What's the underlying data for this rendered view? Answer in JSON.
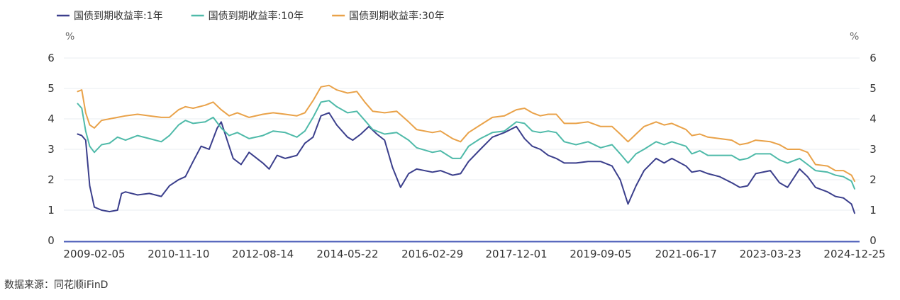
{
  "chart_data": {
    "type": "line",
    "x_ticks": [
      "2009-02-05",
      "2010-11-10",
      "2012-08-14",
      "2014-05-22",
      "2016-02-29",
      "2017-12-01",
      "2019-09-05",
      "2021-06-17",
      "2023-03-23",
      "2024-12-25"
    ],
    "ylabel_left": "%",
    "ylabel_right": "%",
    "ylim": [
      0,
      6
    ],
    "y_ticks": [
      0,
      1,
      2,
      3,
      4,
      5,
      6
    ],
    "grid": true,
    "legend_position": "top-left",
    "series": [
      {
        "name": "国债到期收益率:1年",
        "color": "#3b3f8c",
        "points": [
          [
            "2008-10-01",
            3.5
          ],
          [
            "2008-11-01",
            3.45
          ],
          [
            "2008-12-01",
            3.3
          ],
          [
            "2009-01-01",
            1.8
          ],
          [
            "2009-02-05",
            1.1
          ],
          [
            "2009-04-01",
            1.0
          ],
          [
            "2009-06-01",
            0.95
          ],
          [
            "2009-08-01",
            1.0
          ],
          [
            "2009-09-01",
            1.55
          ],
          [
            "2009-10-01",
            1.6
          ],
          [
            "2010-01-01",
            1.5
          ],
          [
            "2010-04-01",
            1.55
          ],
          [
            "2010-07-01",
            1.45
          ],
          [
            "2010-09-01",
            1.8
          ],
          [
            "2010-11-10",
            2.0
          ],
          [
            "2011-01-01",
            2.1
          ],
          [
            "2011-03-01",
            2.6
          ],
          [
            "2011-05-01",
            3.1
          ],
          [
            "2011-07-01",
            3.0
          ],
          [
            "2011-09-01",
            3.7
          ],
          [
            "2011-10-01",
            3.9
          ],
          [
            "2011-12-01",
            3.1
          ],
          [
            "2012-01-01",
            2.7
          ],
          [
            "2012-03-01",
            2.5
          ],
          [
            "2012-05-01",
            2.9
          ],
          [
            "2012-08-14",
            2.55
          ],
          [
            "2012-10-01",
            2.35
          ],
          [
            "2012-12-01",
            2.8
          ],
          [
            "2013-02-01",
            2.7
          ],
          [
            "2013-05-01",
            2.8
          ],
          [
            "2013-07-01",
            3.2
          ],
          [
            "2013-09-01",
            3.4
          ],
          [
            "2013-11-01",
            4.1
          ],
          [
            "2014-01-01",
            4.2
          ],
          [
            "2014-03-01",
            3.8
          ],
          [
            "2014-05-22",
            3.4
          ],
          [
            "2014-07-01",
            3.3
          ],
          [
            "2014-09-01",
            3.5
          ],
          [
            "2014-11-01",
            3.75
          ],
          [
            "2015-01-01",
            3.5
          ],
          [
            "2015-03-01",
            3.3
          ],
          [
            "2015-05-01",
            2.4
          ],
          [
            "2015-07-01",
            1.75
          ],
          [
            "2015-09-01",
            2.2
          ],
          [
            "2015-11-01",
            2.35
          ],
          [
            "2016-02-29",
            2.25
          ],
          [
            "2016-05-01",
            2.3
          ],
          [
            "2016-08-01",
            2.15
          ],
          [
            "2016-10-01",
            2.2
          ],
          [
            "2016-12-01",
            2.6
          ],
          [
            "2017-03-01",
            3.0
          ],
          [
            "2017-06-01",
            3.4
          ],
          [
            "2017-09-01",
            3.55
          ],
          [
            "2017-12-01",
            3.75
          ],
          [
            "2018-02-01",
            3.35
          ],
          [
            "2018-04-01",
            3.1
          ],
          [
            "2018-06-01",
            3.0
          ],
          [
            "2018-08-01",
            2.8
          ],
          [
            "2018-10-01",
            2.7
          ],
          [
            "2018-12-01",
            2.55
          ],
          [
            "2019-03-01",
            2.55
          ],
          [
            "2019-06-01",
            2.6
          ],
          [
            "2019-09-05",
            2.6
          ],
          [
            "2019-12-01",
            2.45
          ],
          [
            "2020-02-01",
            2.0
          ],
          [
            "2020-04-01",
            1.2
          ],
          [
            "2020-06-01",
            1.8
          ],
          [
            "2020-08-01",
            2.3
          ],
          [
            "2020-11-01",
            2.7
          ],
          [
            "2021-01-01",
            2.55
          ],
          [
            "2021-03-01",
            2.7
          ],
          [
            "2021-06-17",
            2.45
          ],
          [
            "2021-08-01",
            2.25
          ],
          [
            "2021-10-01",
            2.3
          ],
          [
            "2021-12-01",
            2.2
          ],
          [
            "2022-03-01",
            2.1
          ],
          [
            "2022-06-01",
            1.9
          ],
          [
            "2022-08-01",
            1.75
          ],
          [
            "2022-10-01",
            1.8
          ],
          [
            "2022-12-01",
            2.2
          ],
          [
            "2023-03-23",
            2.3
          ],
          [
            "2023-06-01",
            1.9
          ],
          [
            "2023-08-01",
            1.75
          ],
          [
            "2023-11-01",
            2.35
          ],
          [
            "2024-01-01",
            2.1
          ],
          [
            "2024-03-01",
            1.75
          ],
          [
            "2024-06-01",
            1.6
          ],
          [
            "2024-08-01",
            1.45
          ],
          [
            "2024-10-01",
            1.4
          ],
          [
            "2024-12-01",
            1.2
          ],
          [
            "2024-12-25",
            0.9
          ]
        ]
      },
      {
        "name": "国债到期收益率:10年",
        "color": "#4fbaa9",
        "points": [
          [
            "2008-10-01",
            4.5
          ],
          [
            "2008-11-01",
            4.35
          ],
          [
            "2008-12-01",
            3.6
          ],
          [
            "2009-01-01",
            3.1
          ],
          [
            "2009-02-05",
            2.9
          ],
          [
            "2009-04-01",
            3.15
          ],
          [
            "2009-06-01",
            3.2
          ],
          [
            "2009-08-01",
            3.4
          ],
          [
            "2009-10-01",
            3.3
          ],
          [
            "2010-01-01",
            3.45
          ],
          [
            "2010-04-01",
            3.35
          ],
          [
            "2010-07-01",
            3.25
          ],
          [
            "2010-09-01",
            3.45
          ],
          [
            "2010-11-10",
            3.8
          ],
          [
            "2011-01-01",
            3.95
          ],
          [
            "2011-03-01",
            3.85
          ],
          [
            "2011-06-01",
            3.9
          ],
          [
            "2011-08-01",
            4.05
          ],
          [
            "2011-10-01",
            3.7
          ],
          [
            "2011-12-01",
            3.45
          ],
          [
            "2012-02-01",
            3.55
          ],
          [
            "2012-05-01",
            3.35
          ],
          [
            "2012-08-14",
            3.45
          ],
          [
            "2012-11-01",
            3.6
          ],
          [
            "2013-02-01",
            3.55
          ],
          [
            "2013-05-01",
            3.4
          ],
          [
            "2013-07-01",
            3.6
          ],
          [
            "2013-09-01",
            4.05
          ],
          [
            "2013-11-01",
            4.55
          ],
          [
            "2014-01-01",
            4.6
          ],
          [
            "2014-03-01",
            4.4
          ],
          [
            "2014-05-22",
            4.2
          ],
          [
            "2014-08-01",
            4.25
          ],
          [
            "2014-10-01",
            3.95
          ],
          [
            "2014-12-01",
            3.65
          ],
          [
            "2015-03-01",
            3.5
          ],
          [
            "2015-06-01",
            3.55
          ],
          [
            "2015-09-01",
            3.3
          ],
          [
            "2015-11-01",
            3.05
          ],
          [
            "2016-02-29",
            2.9
          ],
          [
            "2016-05-01",
            2.95
          ],
          [
            "2016-08-01",
            2.7
          ],
          [
            "2016-10-01",
            2.7
          ],
          [
            "2016-12-01",
            3.1
          ],
          [
            "2017-03-01",
            3.35
          ],
          [
            "2017-06-01",
            3.55
          ],
          [
            "2017-09-01",
            3.6
          ],
          [
            "2017-12-01",
            3.9
          ],
          [
            "2018-02-01",
            3.85
          ],
          [
            "2018-04-01",
            3.6
          ],
          [
            "2018-06-01",
            3.55
          ],
          [
            "2018-08-01",
            3.6
          ],
          [
            "2018-10-01",
            3.55
          ],
          [
            "2018-12-01",
            3.25
          ],
          [
            "2019-03-01",
            3.15
          ],
          [
            "2019-06-01",
            3.25
          ],
          [
            "2019-09-05",
            3.05
          ],
          [
            "2019-12-01",
            3.15
          ],
          [
            "2020-02-01",
            2.85
          ],
          [
            "2020-04-01",
            2.55
          ],
          [
            "2020-06-01",
            2.85
          ],
          [
            "2020-08-01",
            3.0
          ],
          [
            "2020-11-01",
            3.25
          ],
          [
            "2021-01-01",
            3.15
          ],
          [
            "2021-03-01",
            3.25
          ],
          [
            "2021-06-17",
            3.1
          ],
          [
            "2021-08-01",
            2.85
          ],
          [
            "2021-10-01",
            2.95
          ],
          [
            "2021-12-01",
            2.8
          ],
          [
            "2022-03-01",
            2.8
          ],
          [
            "2022-06-01",
            2.8
          ],
          [
            "2022-08-01",
            2.65
          ],
          [
            "2022-10-01",
            2.7
          ],
          [
            "2022-12-01",
            2.85
          ],
          [
            "2023-03-23",
            2.85
          ],
          [
            "2023-06-01",
            2.65
          ],
          [
            "2023-08-01",
            2.55
          ],
          [
            "2023-11-01",
            2.7
          ],
          [
            "2024-01-01",
            2.5
          ],
          [
            "2024-03-01",
            2.3
          ],
          [
            "2024-06-01",
            2.25
          ],
          [
            "2024-08-01",
            2.15
          ],
          [
            "2024-10-01",
            2.1
          ],
          [
            "2024-12-01",
            1.95
          ],
          [
            "2024-12-25",
            1.7
          ]
        ]
      },
      {
        "name": "国债到期收益率:30年",
        "color": "#e9a249",
        "points": [
          [
            "2008-10-01",
            4.9
          ],
          [
            "2008-11-01",
            4.95
          ],
          [
            "2008-12-01",
            4.2
          ],
          [
            "2009-01-01",
            3.8
          ],
          [
            "2009-02-05",
            3.7
          ],
          [
            "2009-04-01",
            3.95
          ],
          [
            "2009-06-01",
            4.0
          ],
          [
            "2009-08-01",
            4.05
          ],
          [
            "2009-10-01",
            4.1
          ],
          [
            "2010-01-01",
            4.15
          ],
          [
            "2010-04-01",
            4.1
          ],
          [
            "2010-07-01",
            4.05
          ],
          [
            "2010-09-01",
            4.05
          ],
          [
            "2010-11-10",
            4.3
          ],
          [
            "2011-01-01",
            4.4
          ],
          [
            "2011-03-01",
            4.35
          ],
          [
            "2011-06-01",
            4.45
          ],
          [
            "2011-08-01",
            4.55
          ],
          [
            "2011-10-01",
            4.3
          ],
          [
            "2011-12-01",
            4.1
          ],
          [
            "2012-02-01",
            4.2
          ],
          [
            "2012-05-01",
            4.05
          ],
          [
            "2012-08-14",
            4.15
          ],
          [
            "2012-11-01",
            4.2
          ],
          [
            "2013-02-01",
            4.15
          ],
          [
            "2013-05-01",
            4.1
          ],
          [
            "2013-07-01",
            4.2
          ],
          [
            "2013-09-01",
            4.6
          ],
          [
            "2013-11-01",
            5.05
          ],
          [
            "2014-01-01",
            5.1
          ],
          [
            "2014-03-01",
            4.95
          ],
          [
            "2014-05-22",
            4.85
          ],
          [
            "2014-08-01",
            4.9
          ],
          [
            "2014-10-01",
            4.55
          ],
          [
            "2014-12-01",
            4.25
          ],
          [
            "2015-03-01",
            4.2
          ],
          [
            "2015-06-01",
            4.25
          ],
          [
            "2015-09-01",
            3.9
          ],
          [
            "2015-11-01",
            3.65
          ],
          [
            "2016-02-29",
            3.55
          ],
          [
            "2016-05-01",
            3.6
          ],
          [
            "2016-08-01",
            3.35
          ],
          [
            "2016-10-01",
            3.25
          ],
          [
            "2016-12-01",
            3.55
          ],
          [
            "2017-03-01",
            3.8
          ],
          [
            "2017-06-01",
            4.05
          ],
          [
            "2017-09-01",
            4.1
          ],
          [
            "2017-12-01",
            4.3
          ],
          [
            "2018-02-01",
            4.35
          ],
          [
            "2018-04-01",
            4.2
          ],
          [
            "2018-06-01",
            4.1
          ],
          [
            "2018-08-01",
            4.15
          ],
          [
            "2018-10-01",
            4.15
          ],
          [
            "2018-12-01",
            3.85
          ],
          [
            "2019-03-01",
            3.85
          ],
          [
            "2019-06-01",
            3.9
          ],
          [
            "2019-09-05",
            3.75
          ],
          [
            "2019-12-01",
            3.75
          ],
          [
            "2020-02-01",
            3.5
          ],
          [
            "2020-04-01",
            3.25
          ],
          [
            "2020-06-01",
            3.5
          ],
          [
            "2020-08-01",
            3.75
          ],
          [
            "2020-11-01",
            3.9
          ],
          [
            "2021-01-01",
            3.8
          ],
          [
            "2021-03-01",
            3.85
          ],
          [
            "2021-06-17",
            3.65
          ],
          [
            "2021-08-01",
            3.45
          ],
          [
            "2021-10-01",
            3.5
          ],
          [
            "2021-12-01",
            3.4
          ],
          [
            "2022-03-01",
            3.35
          ],
          [
            "2022-06-01",
            3.3
          ],
          [
            "2022-08-01",
            3.15
          ],
          [
            "2022-10-01",
            3.2
          ],
          [
            "2022-12-01",
            3.3
          ],
          [
            "2023-03-23",
            3.25
          ],
          [
            "2023-06-01",
            3.15
          ],
          [
            "2023-08-01",
            3.0
          ],
          [
            "2023-11-01",
            3.0
          ],
          [
            "2024-01-01",
            2.9
          ],
          [
            "2024-03-01",
            2.5
          ],
          [
            "2024-06-01",
            2.45
          ],
          [
            "2024-08-01",
            2.3
          ],
          [
            "2024-10-01",
            2.3
          ],
          [
            "2024-12-01",
            2.15
          ],
          [
            "2024-12-25",
            1.95
          ]
        ]
      }
    ]
  },
  "source_text": "数据来源：同花顺iFinD"
}
